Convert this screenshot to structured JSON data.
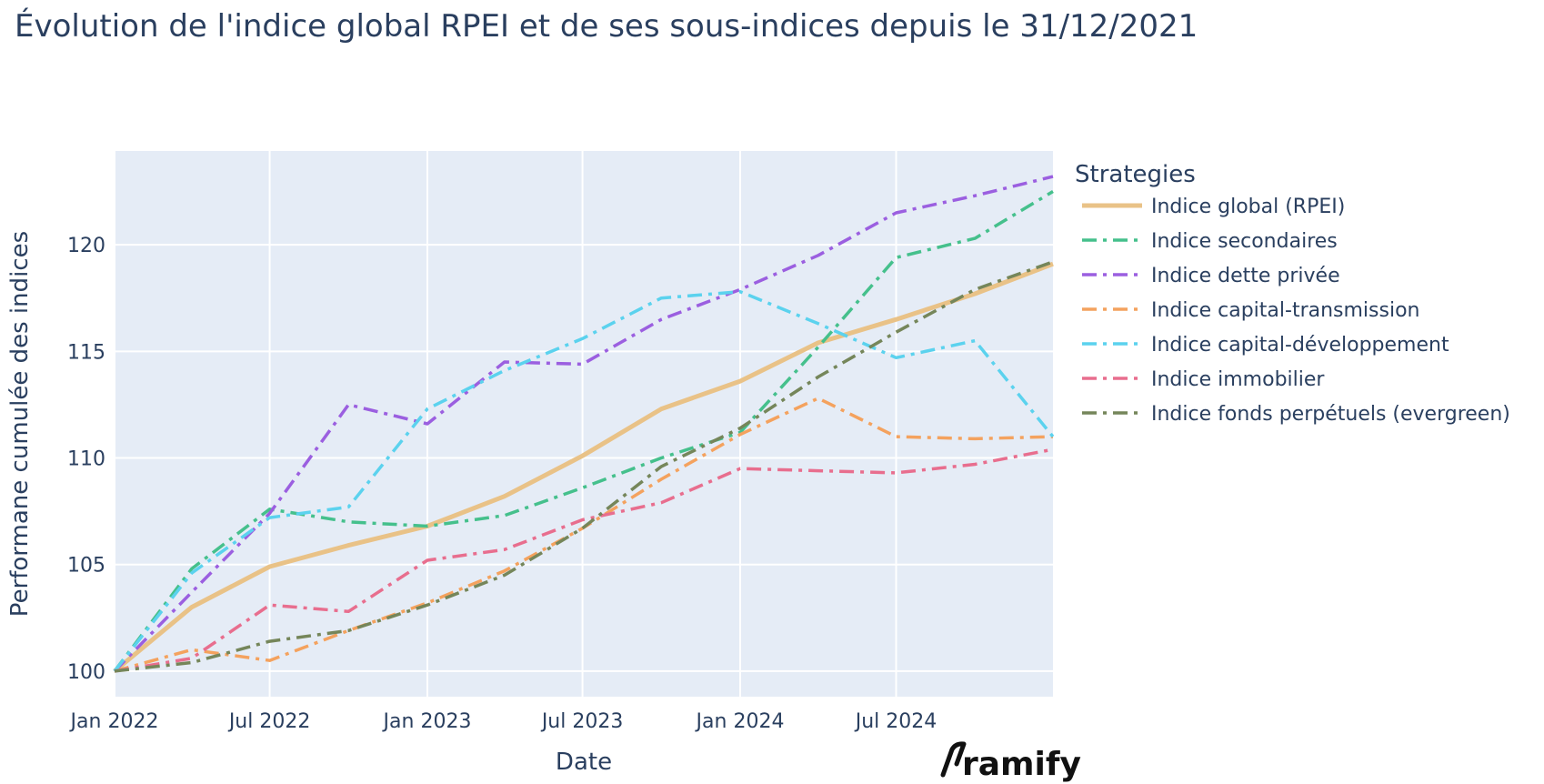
{
  "chart_data": {
    "type": "line",
    "title": "Évolution de l'indice global RPEI et de ses sous-indices depuis le 31/12/2021",
    "xlabel": "Date",
    "ylabel": "Performane cumulée des indices",
    "x_dates": [
      "2022-01-01",
      "2022-04-01",
      "2022-07-01",
      "2022-10-01",
      "2023-01-01",
      "2023-04-01",
      "2023-07-01",
      "2023-10-01",
      "2024-01-01",
      "2024-04-01",
      "2024-07-01",
      "2024-10-01",
      "2024-12-31"
    ],
    "x_ticks": [
      {
        "date": "2022-01-01",
        "label": "Jan 2022"
      },
      {
        "date": "2022-07-01",
        "label": "Jul 2022"
      },
      {
        "date": "2023-01-01",
        "label": "Jan 2023"
      },
      {
        "date": "2023-07-01",
        "label": "Jul 2023"
      },
      {
        "date": "2024-01-01",
        "label": "Jan 2024"
      },
      {
        "date": "2024-07-01",
        "label": "Jul 2024"
      }
    ],
    "x_range": [
      "2022-01-01",
      "2024-12-31"
    ],
    "ylim": [
      98.8,
      124.4
    ],
    "y_ticks": [
      100,
      105,
      110,
      115,
      120
    ],
    "grid": true,
    "plot_bgcolor": "#E5ECF6",
    "legend": {
      "title": "Strategies",
      "position": "right"
    },
    "series": [
      {
        "name": "Indice global (RPEI)",
        "color": "#E9C287",
        "dash": "solid",
        "values": [
          100,
          103.0,
          104.9,
          105.9,
          106.8,
          108.2,
          110.1,
          112.3,
          113.6,
          115.4,
          116.5,
          117.7,
          119.1
        ]
      },
      {
        "name": "Indice secondaires",
        "color": "#45C08C",
        "dash": "dashdot",
        "values": [
          100,
          104.8,
          107.6,
          107.0,
          106.8,
          107.3,
          108.6,
          110.0,
          111.2,
          115.2,
          119.4,
          120.3,
          122.5
        ]
      },
      {
        "name": "Indice dette privée",
        "color": "#9B5FE0",
        "dash": "dashdot",
        "values": [
          100,
          103.7,
          107.4,
          112.5,
          111.6,
          114.5,
          114.4,
          116.5,
          117.9,
          119.5,
          121.5,
          122.3,
          123.2
        ]
      },
      {
        "name": "Indice capital-transmission",
        "color": "#F4A25E",
        "dash": "dashdot",
        "values": [
          100,
          101.0,
          100.5,
          101.9,
          103.2,
          104.7,
          106.7,
          109.0,
          111.1,
          112.8,
          111.0,
          110.9,
          111.0
        ]
      },
      {
        "name": "Indice capital-développement",
        "color": "#5BD2EE",
        "dash": "dashdot",
        "values": [
          100,
          104.6,
          107.2,
          107.7,
          112.3,
          114.1,
          115.6,
          117.5,
          117.8,
          116.3,
          114.7,
          115.5,
          111.0
        ]
      },
      {
        "name": "Indice immobilier",
        "color": "#E86E8E",
        "dash": "dashdot",
        "values": [
          100,
          100.6,
          103.1,
          102.8,
          105.2,
          105.7,
          107.1,
          107.9,
          109.5,
          109.4,
          109.3,
          109.7,
          110.4
        ]
      },
      {
        "name": "Indice fonds perpétuels (evergreen)",
        "color": "#75865A",
        "dash": "dashdot",
        "values": [
          100,
          100.4,
          101.4,
          101.9,
          103.1,
          104.5,
          106.7,
          109.6,
          111.4,
          113.8,
          115.9,
          117.9,
          119.2
        ]
      }
    ]
  },
  "brand": {
    "name": "ramify"
  }
}
